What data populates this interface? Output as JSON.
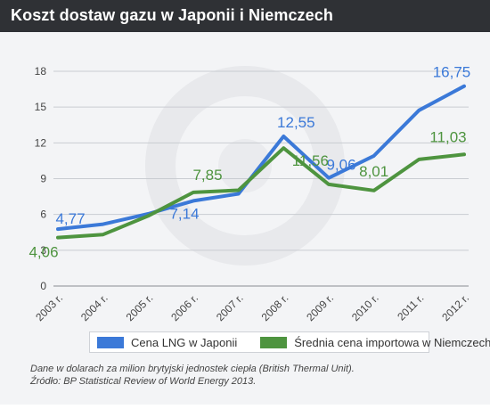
{
  "title": "Koszt dostaw gazu w Japonii i Niemczech",
  "colors": {
    "japan": "#3b79d8",
    "germany": "#4e943f",
    "header_bg": "#2f3135"
  },
  "chart_data": {
    "type": "line",
    "title": "Koszt dostaw gazu w Japonii i Niemczech",
    "categories": [
      "2003 r.",
      "2004 r.",
      "2005 r.",
      "2006 r.",
      "2007 r.",
      "2008 r.",
      "2009 r.",
      "2010 r.",
      "2011 r.",
      "2012 r."
    ],
    "ylim": [
      0,
      18
    ],
    "yticks": [
      "0",
      "3",
      "6",
      "9",
      "12",
      "15",
      "18"
    ],
    "grid": true,
    "legend_position": "bottom",
    "series": [
      {
        "name": "Cena LNG w Japonii",
        "values": [
          4.77,
          5.18,
          6.05,
          7.14,
          7.73,
          12.55,
          9.06,
          10.91,
          14.73,
          16.75
        ],
        "labels": [
          "4,77",
          "",
          "",
          "7,14",
          "",
          "12,55",
          "9,06",
          "",
          "",
          "16,75"
        ]
      },
      {
        "name": "Średnia cena importowa w Niemczech",
        "values": [
          4.06,
          4.32,
          5.88,
          7.85,
          8.03,
          11.56,
          8.52,
          8.01,
          10.61,
          11.03
        ],
        "labels": [
          "4,06",
          "",
          "",
          "7,85",
          "",
          "11,56",
          "",
          "8,01",
          "",
          "11,03"
        ]
      }
    ]
  },
  "notes": {
    "line1": "Dane w dolarach za milion brytyjski jednostek ciepła (British Thermal Unit).",
    "line2": "Źródło: BP Statistical Review of World Energy 2013."
  }
}
